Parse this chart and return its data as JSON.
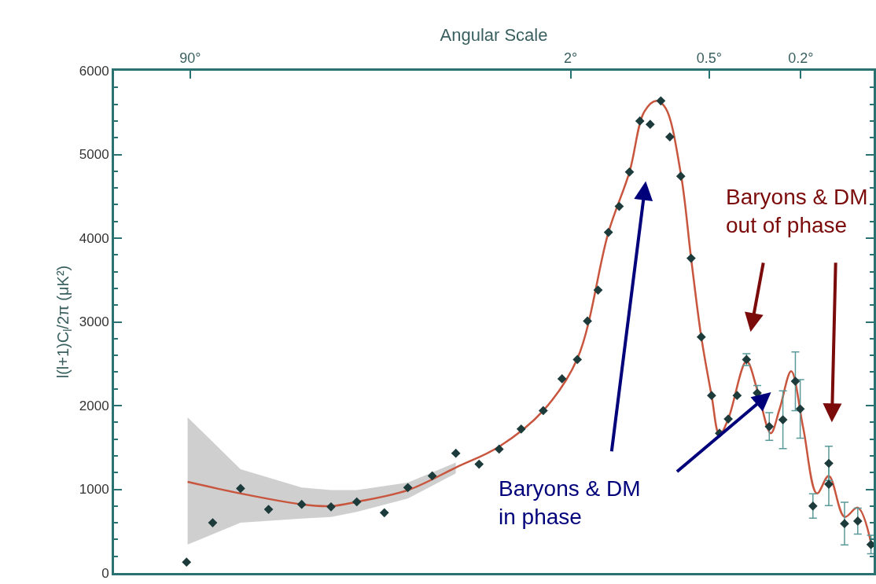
{
  "chart_data": {
    "type": "scatter",
    "xlabel": "Angular Scale",
    "ylabel": "l(l+1)C$_{l}$/2π (μK²)",
    "log": "x",
    "xlim": [
      193,
      0.0964
    ],
    "xticks": [
      {
        "value": 90,
        "label": "90°"
      },
      {
        "value": 2,
        "label": "2°"
      },
      {
        "value": 0.5,
        "label": "0.5°"
      },
      {
        "value": 0.2,
        "label": "0.2°"
      }
    ],
    "ylim": [
      0,
      6000
    ],
    "yticks": [
      0,
      1000,
      2000,
      3000,
      4000,
      5000,
      6000
    ],
    "series": [
      {
        "type": "line",
        "color": "#c8553d",
        "marker": "none",
        "line_style": "solid",
        "x": [
          92.4,
          54.4,
          29.5,
          22.0,
          17.0,
          10.2,
          6.31,
          4.09,
          2.63,
          1.87,
          1.37,
          1.11,
          0.957,
          0.847,
          0.772,
          0.664,
          0.599,
          0.541,
          0.488,
          0.451,
          0.413,
          0.344,
          0.309,
          0.27,
          0.247,
          0.22,
          0.195,
          0.17,
          0.151,
          0.129,
          0.113,
          0.099
        ],
        "values": [
          1090,
          950,
          820,
          800,
          850,
          990,
          1260,
          1510,
          1940,
          2560,
          4070,
          4790,
          5510,
          5640,
          5550,
          4770,
          3760,
          2820,
          2120,
          1650,
          1840,
          2530,
          2190,
          1670,
          1960,
          2410,
          1730,
          950,
          1160,
          670,
          780,
          360
        ],
        "lower": [
          340,
          600,
          650,
          670,
          730,
          890,
          1190,
          null,
          null,
          null,
          null,
          null,
          null,
          null,
          null,
          null,
          null,
          null,
          null,
          null,
          null,
          null,
          null,
          null,
          null,
          null,
          null,
          null,
          null,
          null,
          null,
          null
        ],
        "upper": [
          1860,
          1240,
          1020,
          990,
          990,
          1080,
          1320,
          null,
          null,
          null,
          null,
          null,
          null,
          null,
          null,
          null,
          null,
          null,
          null,
          null,
          null,
          null,
          null,
          null,
          null,
          null,
          null,
          null,
          null,
          null,
          null,
          null
        ]
      },
      {
        "color": "#1d3b3b",
        "marker": "diamond",
        "x": [
          93.4,
          71.9,
          54.4,
          41.1,
          29.5,
          22.0,
          17.0,
          12.9,
          10.2,
          7.99,
          6.31,
          5.0,
          4.09,
          3.28,
          2.63,
          2.18,
          1.87,
          1.69,
          1.52,
          1.37,
          1.23,
          1.11,
          1.0,
          0.902,
          0.811,
          0.741,
          0.664,
          0.599,
          0.541,
          0.488,
          0.451,
          0.413,
          0.378,
          0.344,
          0.309,
          0.274,
          0.239,
          0.211,
          0.201,
          0.177,
          0.151,
          0.151,
          0.129,
          0.113,
          0.099
        ],
        "values": [
          130,
          600,
          1010,
          760,
          820,
          790,
          850,
          720,
          1020,
          1160,
          1430,
          1300,
          1480,
          1720,
          1940,
          2320,
          2550,
          3010,
          3380,
          4070,
          4380,
          4790,
          5400,
          5360,
          5640,
          5210,
          4740,
          3760,
          2820,
          2120,
          1670,
          1840,
          2120,
          2550,
          2150,
          1750,
          1830,
          2290,
          1960,
          800,
          1310,
          1060,
          590,
          620,
          340
        ],
        "errors": [
          null,
          null,
          null,
          null,
          null,
          null,
          null,
          null,
          null,
          null,
          null,
          null,
          null,
          null,
          null,
          null,
          null,
          null,
          null,
          null,
          null,
          null,
          null,
          null,
          null,
          null,
          null,
          null,
          null,
          null,
          null,
          null,
          null,
          70,
          90,
          165,
          345,
          350,
          350,
          145,
          205,
          255,
          255,
          155,
          110
        ]
      }
    ],
    "annotations": [
      "Baryons & DM\nout of phase",
      "Baryons & DM\nin phase"
    ]
  }
}
